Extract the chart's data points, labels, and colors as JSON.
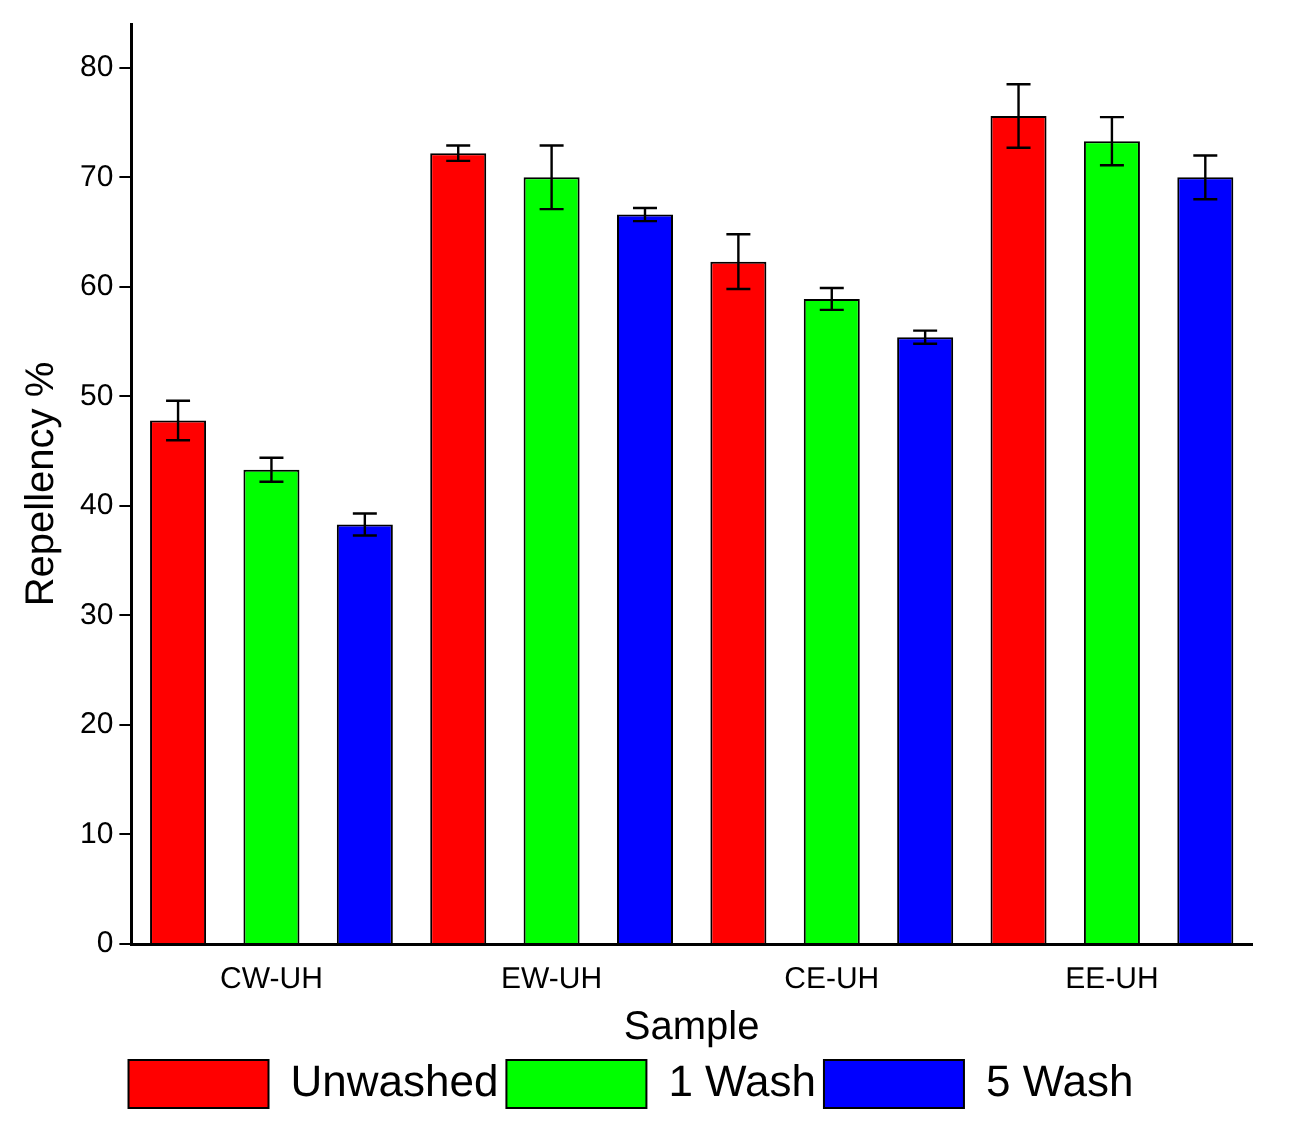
{
  "chart_data": {
    "type": "bar",
    "xlabel": "Sample",
    "ylabel": "Repellency %",
    "categories": [
      "CW-UH",
      "EW-UH",
      "CE-UH",
      "EE-UH"
    ],
    "series": [
      {
        "name": "Unwashed",
        "color": "#ff0000",
        "values": [
          47.8,
          72.2,
          62.3,
          75.6
        ],
        "errors": [
          1.8,
          0.7,
          2.5,
          2.9
        ]
      },
      {
        "name": "1 Wash",
        "color": "#00ff00",
        "values": [
          43.3,
          70.0,
          58.9,
          73.3
        ],
        "errors": [
          1.1,
          2.9,
          1.0,
          2.2
        ]
      },
      {
        "name": "5 Wash",
        "color": "#0000ff",
        "values": [
          38.3,
          66.6,
          55.4,
          70.0
        ],
        "errors": [
          1.0,
          0.6,
          0.6,
          2.0
        ]
      }
    ],
    "ylim": [
      0,
      84
    ],
    "yticks": [
      0,
      10,
      20,
      30,
      40,
      50,
      60,
      70,
      80
    ],
    "grid": false,
    "legend": "bottom"
  }
}
